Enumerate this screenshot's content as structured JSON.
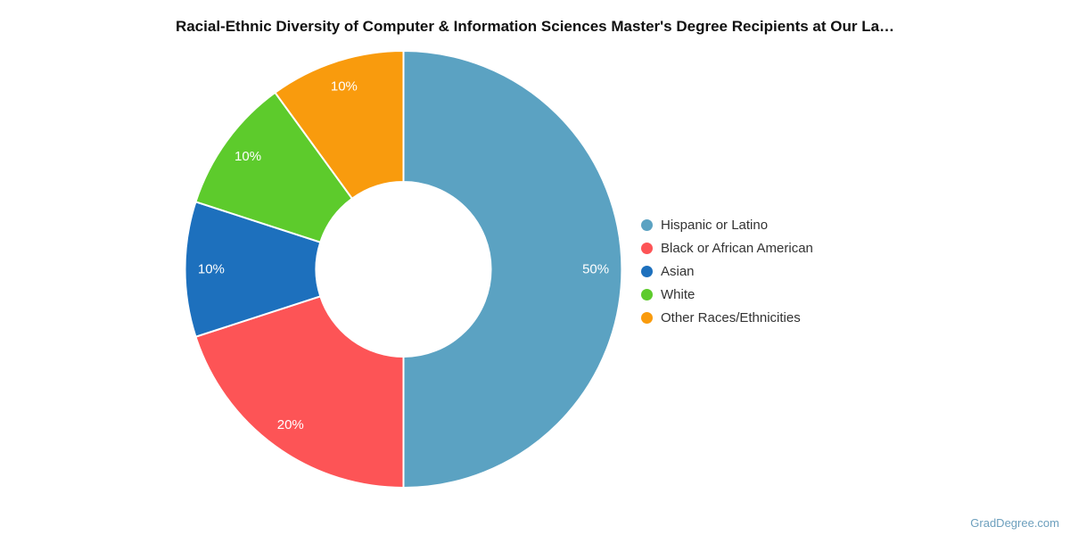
{
  "title": "Racial-Ethnic Diversity of Computer & Information Sciences Master's Degree Recipients at Our La…",
  "watermark": {
    "label": "GradDegree.com",
    "color": "#6c9fbd"
  },
  "chart_data": {
    "type": "pie",
    "subtype": "donut",
    "title": "Racial-Ethnic Diversity of Computer & Information Sciences Master's Degree Recipients at Our La…",
    "categories": [
      "Hispanic or Latino",
      "Black or African American",
      "Asian",
      "White",
      "Other Races/Ethnicities"
    ],
    "values": [
      50,
      20,
      10,
      10,
      10
    ],
    "slice_labels": [
      "50%",
      "20%",
      "10%",
      "10%",
      "10%"
    ],
    "colors": [
      "#5ba2c2",
      "#fd5456",
      "#1d70bd",
      "#5dcb2c",
      "#f99b0d"
    ],
    "label_color": "#ffffff",
    "start_angle_deg": 0,
    "direction": "clockwise",
    "hole_ratio": 0.4,
    "separator_color": "#ffffff",
    "legend_position": "right",
    "grid": false
  }
}
